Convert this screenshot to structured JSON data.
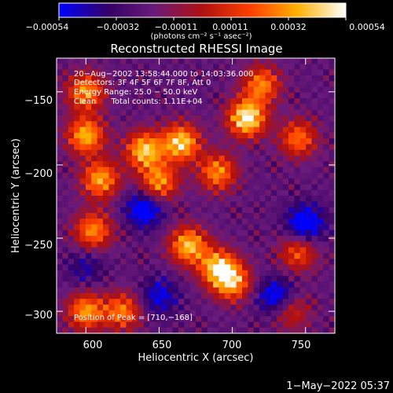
{
  "chart_data": {
    "type": "heatmap",
    "title": "Reconstructed RHESSI Image",
    "xlabel": "Heliocentric X (arcsec)",
    "ylabel": "Heliocentric Y (arcsec)",
    "xlim": [
      580,
      770
    ],
    "ylim": [
      -315,
      -127
    ],
    "x_ticks": [
      600,
      650,
      700,
      750
    ],
    "y_ticks": [
      -300,
      -250,
      -200,
      -150
    ],
    "x_tick_labels": [
      "600",
      "650",
      "700",
      "750"
    ],
    "y_tick_labels": [
      "−300",
      "−250",
      "−200",
      "−150"
    ],
    "colorbar": {
      "range": [
        -0.00054,
        0.00054
      ],
      "ticks": [
        -0.00054,
        -0.00032,
        -0.00011,
        0.00011,
        0.00032,
        0.00054
      ],
      "tick_labels": [
        "−0.00054",
        "−0.00032",
        "−0.00011",
        "0.00011",
        "0.00032",
        "0.00054"
      ],
      "units": "(photons cm⁻² s⁻¹ asec⁻²)",
      "colors": [
        "#0000ff",
        "#330066",
        "#6a1a7a",
        "#b01010",
        "#ff4000",
        "#ffb000",
        "#ffffff"
      ]
    },
    "annotations": [
      "20−Aug−2002 13:58:44.000 to 14:03:36.000",
      "Detectors: 3F 4F 5F 6F 7F 8F, Att 0",
      "Energy Range: 25.0 − 50.0 keV",
      "Clean      Total counts: 1.11E+04"
    ],
    "peak_label": "Position of Peak = [710,−168]",
    "peak": [
      710,
      -168
    ],
    "hotspots": [
      {
        "x": 710,
        "y": -168,
        "amp": 0.00054
      },
      {
        "x": 665,
        "y": -185,
        "amp": 0.00045
      },
      {
        "x": 640,
        "y": -190,
        "amp": 0.00042
      },
      {
        "x": 600,
        "y": -180,
        "amp": 0.00038
      },
      {
        "x": 610,
        "y": -210,
        "amp": 0.00035
      },
      {
        "x": 600,
        "y": -150,
        "amp": 0.00032
      },
      {
        "x": 690,
        "y": -205,
        "amp": 0.0003
      },
      {
        "x": 650,
        "y": -212,
        "amp": 0.00032
      },
      {
        "x": 670,
        "y": -255,
        "amp": 0.0004
      },
      {
        "x": 690,
        "y": -270,
        "amp": 0.00038
      },
      {
        "x": 700,
        "y": -280,
        "amp": 0.00034
      },
      {
        "x": 605,
        "y": -245,
        "amp": 0.0003
      },
      {
        "x": 600,
        "y": -300,
        "amp": 0.00032
      },
      {
        "x": 625,
        "y": -300,
        "amp": 0.00026
      },
      {
        "x": 720,
        "y": -145,
        "amp": 0.00028
      },
      {
        "x": 745,
        "y": -182,
        "amp": 0.00024
      },
      {
        "x": 745,
        "y": -260,
        "amp": 0.00018
      },
      {
        "x": 740,
        "y": -300,
        "amp": 0.0001
      }
    ],
    "cold_spots": [
      {
        "x": 640,
        "y": -230,
        "amp": -0.00042
      },
      {
        "x": 750,
        "y": -240,
        "amp": -0.00045
      },
      {
        "x": 730,
        "y": -290,
        "amp": -0.0004
      },
      {
        "x": 600,
        "y": -270,
        "amp": -0.0002
      },
      {
        "x": 650,
        "y": -290,
        "amp": -0.0003
      }
    ]
  },
  "footer": {
    "timestamp": "1−May−2022 05:37"
  }
}
